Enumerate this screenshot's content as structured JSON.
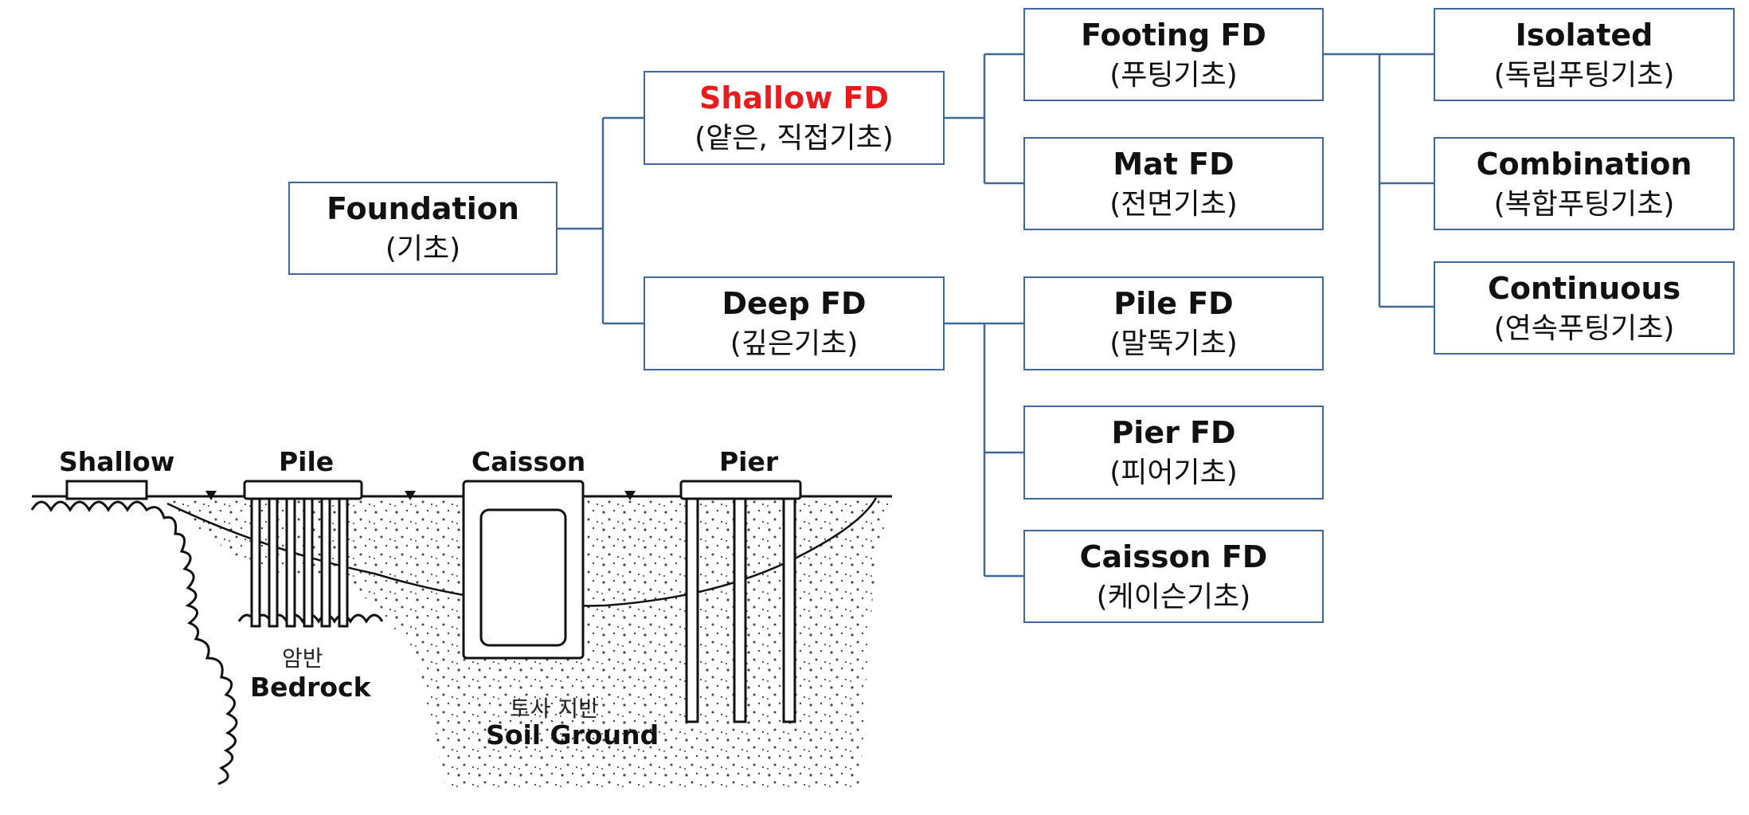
{
  "tree": {
    "foundation": {
      "en": "Foundation",
      "ko": "(기초)"
    },
    "shallow": {
      "en": "Shallow FD",
      "ko": "(얕은, 직접기초)",
      "en_color": "#e81c1c"
    },
    "deep": {
      "en": "Deep FD",
      "ko": "(깊은기초)"
    },
    "footing": {
      "en": "Footing FD",
      "ko": "(푸팅기초)"
    },
    "mat": {
      "en": "Mat FD",
      "ko": "(전면기초)"
    },
    "pile": {
      "en": "Pile FD",
      "ko": "(말뚝기초)"
    },
    "pier": {
      "en": "Pier FD",
      "ko": "(피어기초)"
    },
    "caisson": {
      "en": "Caisson FD",
      "ko": "(케이슨기초)"
    },
    "isolated": {
      "en": "Isolated",
      "ko": "(독립푸팅기초)"
    },
    "combination": {
      "en": "Combination",
      "ko": "(복합푸팅기초)"
    },
    "continuous": {
      "en": "Continuous",
      "ko": "(연속푸팅기초)"
    }
  },
  "illustration": {
    "shallow": "Shallow",
    "pile": "Pile",
    "caisson": "Caisson",
    "pier": "Pier",
    "bedrock_ko": "암반",
    "bedrock": "Bedrock",
    "soil_ko": "토사 지반",
    "soil": "Soil Ground"
  },
  "colors": {
    "box_border": "#41679b",
    "connector": "#41679b",
    "highlight": "#e81c1c"
  }
}
